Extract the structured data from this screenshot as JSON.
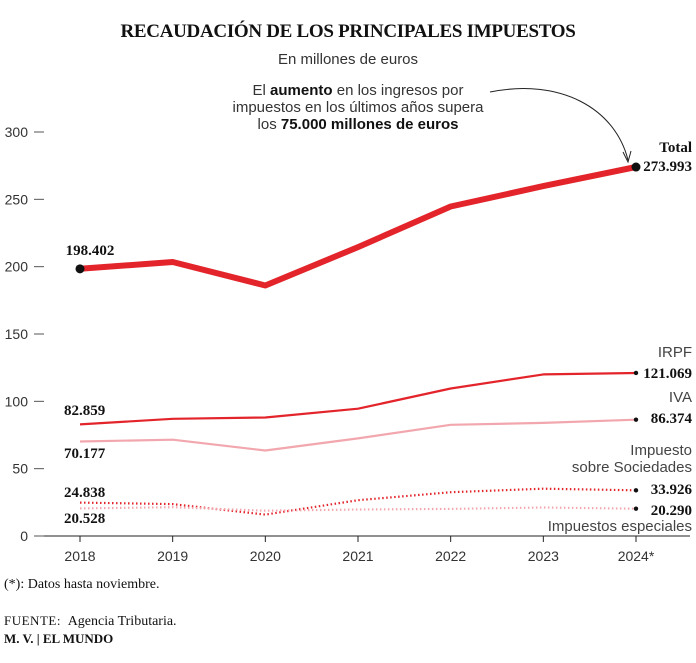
{
  "header": {
    "title": "RECAUDACIÓN DE LOS PRINCIPALES IMPUESTOS",
    "subtitle": "En millones de euros"
  },
  "annotation": {
    "line1": "El aumento en los ingresos por",
    "line2": "impuestos en los últimos años supera",
    "line3": "los 75.000 millones de euros"
  },
  "footer": {
    "note": "(*): Datos hasta noviembre.",
    "source_label": "FUENTE:",
    "source_text": "Agencia Tributaria.",
    "credit": "M. V. | EL MUNDO"
  },
  "chart_data": {
    "type": "line",
    "title": "RECAUDACIÓN DE LOS PRINCIPALES IMPUESTOS",
    "subtitle": "En millones de euros",
    "categories": [
      "2018",
      "2019",
      "2020",
      "2021",
      "2022",
      "2023",
      "2024*"
    ],
    "ylim": [
      0,
      300
    ],
    "yticks": [
      0,
      50,
      100,
      150,
      200,
      250,
      300
    ],
    "grid": false,
    "series": [
      {
        "name": "Total",
        "color": "#e3242b",
        "style": "thick",
        "values": [
          198.402,
          203.5,
          186.0,
          214.5,
          244.7,
          259.8,
          273.993
        ],
        "start_label": "198.402",
        "end_label": "273.993"
      },
      {
        "name": "IRPF",
        "color": "#e3242b",
        "style": "solid",
        "values": [
          82.859,
          87.0,
          88.0,
          94.5,
          109.5,
          120.0,
          121.069
        ],
        "start_label": "82.859",
        "end_label": "121.069"
      },
      {
        "name": "IVA",
        "color": "#f2a7ae",
        "style": "solid",
        "values": [
          70.177,
          71.5,
          63.5,
          72.5,
          82.6,
          84.0,
          86.374
        ],
        "start_label": "70.177",
        "end_label": "86.374"
      },
      {
        "name": "Impuesto sobre Sociedades",
        "color": "#e3242b",
        "style": "dotted",
        "values": [
          24.838,
          23.7,
          15.9,
          26.6,
          32.5,
          35.1,
          33.926
        ],
        "start_label": "24.838",
        "end_label": "33.926"
      },
      {
        "name": "Impuestos especiales",
        "color": "#f2a7ae",
        "style": "dotted",
        "values": [
          20.528,
          21.4,
          18.8,
          19.7,
          20.1,
          21.2,
          20.29
        ],
        "start_label": "20.528",
        "end_label": "20.290"
      }
    ]
  }
}
